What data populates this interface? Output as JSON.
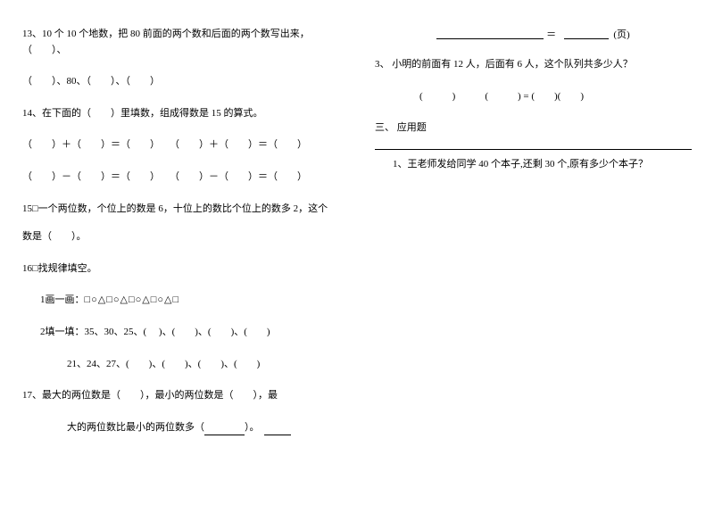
{
  "left": {
    "q13": "13、10 个 10 个地数，把 80 前面的两个数和后面的两个数写出来，（　　）、",
    "q13b": "（　　）、80、（　　）、（　　）",
    "q14": "14、在下面的（　　）里填数，组成得数是 15 的算式。",
    "q14a": "（　　）＋（　　）＝（　　）　　（　　）＋（　　）＝（　　）",
    "q14b": "（　　）－（　　）＝（　　）　　（　　）－（　　）＝（　　）",
    "q15": "15□一个两位数，个位上的数是 6，十位上的数比个位上的数多 2，这个",
    "q15b": "数是（　　）。",
    "q16": "16□找规律填空。",
    "q16a_label": "1画一画：",
    "q16a_shapes": "□○△□○△□○△□○△□",
    "q16b": "2填一填：35、30、25、(　 )、(　　)、(　　)、(　　)",
    "q16c": "21、24、27、(　　)、(　　)、(　　)、(　　)",
    "q17": "17、最大的两位数是（　　），最小的两位数是（　　），最",
    "q17b_prefix": "大的两位数比最小的两位数多（",
    "q17b_suffix": "）。"
  },
  "right": {
    "frac_eq": "＝",
    "frac_unit": "(页)",
    "q3": "3、 小明的前面有 12 人，后面有 6 人，这个队列共多少人？",
    "q3b": "(　　　)　　　(　　　) = (　　)(　　)",
    "section3": "三、 应用题",
    "q1": "1、王老师发给同学 40 个本子,还剩 30 个,原有多少个本子？"
  }
}
